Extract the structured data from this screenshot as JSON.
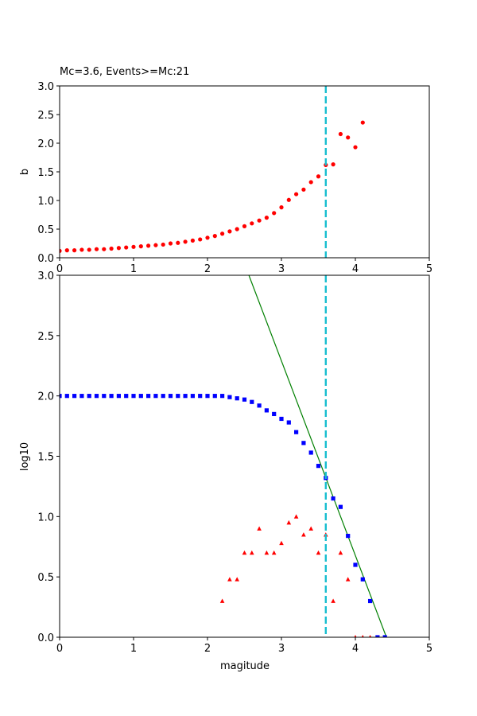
{
  "chart_data": [
    {
      "type": "scatter",
      "title": "Mc=3.6, Events>=Mc:21",
      "xlabel": "",
      "ylabel": "b",
      "xlim": [
        0,
        5
      ],
      "ylim": [
        0,
        3
      ],
      "xticks": [
        "0",
        "1",
        "2",
        "3",
        "4",
        "5"
      ],
      "yticks": [
        "0.0",
        "0.5",
        "1.0",
        "1.5",
        "2.0",
        "2.5",
        "3.0"
      ],
      "grid": false,
      "mc_line": {
        "x": 3.6,
        "color": "#17becf",
        "style": "dashed"
      },
      "series": [
        {
          "marker": "circle",
          "color": "#ff0000",
          "x": [
            0.0,
            0.1,
            0.2,
            0.3,
            0.4,
            0.5,
            0.6,
            0.7,
            0.8,
            0.9,
            1.0,
            1.1,
            1.2,
            1.3,
            1.4,
            1.5,
            1.6,
            1.7,
            1.8,
            1.9,
            2.0,
            2.1,
            2.2,
            2.3,
            2.4,
            2.5,
            2.6,
            2.7,
            2.8,
            2.9,
            3.0,
            3.1,
            3.2,
            3.3,
            3.4,
            3.5,
            3.6,
            3.7,
            3.8,
            3.9,
            4.0,
            4.1
          ],
          "y": [
            0.12,
            0.13,
            0.13,
            0.14,
            0.14,
            0.15,
            0.15,
            0.16,
            0.17,
            0.18,
            0.19,
            0.2,
            0.21,
            0.22,
            0.23,
            0.25,
            0.26,
            0.28,
            0.3,
            0.32,
            0.35,
            0.38,
            0.42,
            0.46,
            0.5,
            0.55,
            0.6,
            0.65,
            0.7,
            0.78,
            0.88,
            1.01,
            1.11,
            1.19,
            1.32,
            1.42,
            1.62,
            1.63,
            2.16,
            2.1,
            1.93,
            2.36
          ]
        }
      ]
    },
    {
      "type": "scatter",
      "title": "",
      "xlabel": "magitude",
      "ylabel": "log10",
      "xlim": [
        0,
        5
      ],
      "ylim": [
        0,
        3
      ],
      "xticks": [
        "0",
        "1",
        "2",
        "3",
        "4",
        "5"
      ],
      "yticks": [
        "0.0",
        "0.5",
        "1.0",
        "1.5",
        "2.0",
        "2.5",
        "3.0"
      ],
      "grid": false,
      "mc_line": {
        "x": 3.6,
        "color": "#17becf",
        "style": "dashed"
      },
      "fit_line": {
        "x": [
          2.56,
          4.42
        ],
        "y": [
          3.0,
          0.0
        ],
        "color": "#008000"
      },
      "series": [
        {
          "marker": "square",
          "color": "#0000ff",
          "x": [
            0.0,
            0.1,
            0.2,
            0.3,
            0.4,
            0.5,
            0.6,
            0.7,
            0.8,
            0.9,
            1.0,
            1.1,
            1.2,
            1.3,
            1.4,
            1.5,
            1.6,
            1.7,
            1.8,
            1.9,
            2.0,
            2.1,
            2.2,
            2.3,
            2.4,
            2.5,
            2.6,
            2.7,
            2.8,
            2.9,
            3.0,
            3.1,
            3.2,
            3.3,
            3.4,
            3.5,
            3.6,
            3.7,
            3.8,
            3.9,
            4.0,
            4.1,
            4.2,
            4.3,
            4.4
          ],
          "y": [
            2.0,
            2.0,
            2.0,
            2.0,
            2.0,
            2.0,
            2.0,
            2.0,
            2.0,
            2.0,
            2.0,
            2.0,
            2.0,
            2.0,
            2.0,
            2.0,
            2.0,
            2.0,
            2.0,
            2.0,
            2.0,
            2.0,
            2.0,
            1.99,
            1.98,
            1.97,
            1.95,
            1.92,
            1.88,
            1.85,
            1.81,
            1.78,
            1.7,
            1.61,
            1.53,
            1.42,
            1.32,
            1.15,
            1.08,
            0.84,
            0.6,
            0.48,
            0.3,
            0.0,
            0.0
          ]
        },
        {
          "marker": "triangle",
          "color": "#ff0000",
          "x": [
            2.2,
            2.3,
            2.4,
            2.5,
            2.6,
            2.7,
            2.8,
            2.9,
            3.0,
            3.1,
            3.2,
            3.3,
            3.4,
            3.5,
            3.6,
            3.7,
            3.8,
            3.9,
            4.0,
            4.1,
            4.2
          ],
          "y": [
            0.3,
            0.48,
            0.48,
            0.7,
            0.7,
            0.9,
            0.7,
            0.7,
            0.78,
            0.95,
            1.0,
            0.85,
            0.9,
            0.7,
            0.85,
            0.3,
            0.7,
            0.48,
            0.0,
            0.0,
            0.0
          ]
        }
      ]
    }
  ]
}
